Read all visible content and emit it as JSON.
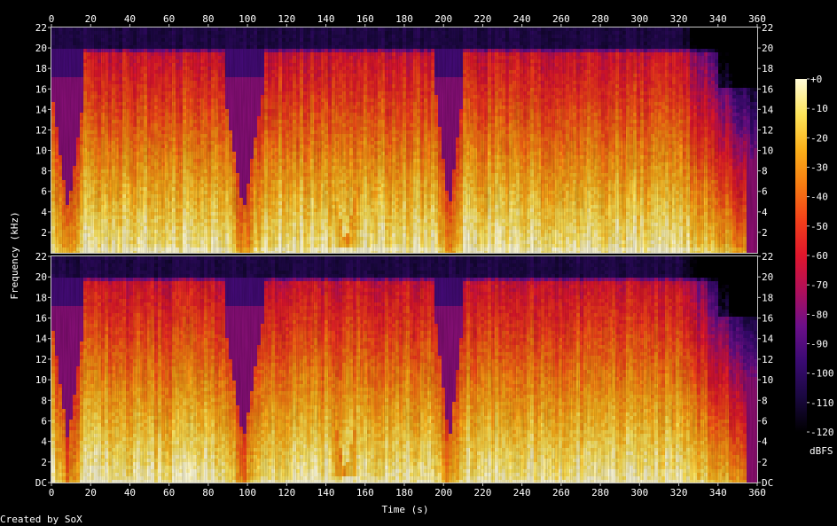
{
  "footer": {
    "credit": "Created by SoX"
  },
  "colors": {
    "background": "#000000",
    "palette": [
      "#000000",
      "#1a0840",
      "#3a0a72",
      "#6c0f8a",
      "#b00f5a",
      "#e0162c",
      "#f2401a",
      "#f77c12",
      "#fbb01a",
      "#fde45a",
      "#fffbd8"
    ]
  },
  "chart_data": {
    "type": "heatmap",
    "subtype": "spectrogram",
    "channels": 2,
    "xlabel": "Time (s)",
    "ylabel": "Frequency (kHz)",
    "xlim": [
      0,
      360
    ],
    "ylim_khz": [
      0,
      22
    ],
    "x_ticks": [
      "0",
      "20",
      "40",
      "60",
      "80",
      "100",
      "120",
      "140",
      "160",
      "180",
      "200",
      "220",
      "240",
      "260",
      "280",
      "300",
      "320",
      "340",
      "360"
    ],
    "channel_1_y_ticks": [
      "22",
      "20",
      "18",
      "16",
      "14",
      "12",
      "10",
      "8",
      "6",
      "4",
      "2"
    ],
    "channel_2_y_ticks": [
      "22",
      "20",
      "18",
      "16",
      "14",
      "12",
      "10",
      "8",
      "6",
      "4",
      "2",
      "DC"
    ],
    "colorbar": {
      "label": "dBFS",
      "range": [
        -120,
        0
      ],
      "ticks": [
        "+0",
        "-10",
        "-20",
        "-30",
        "-40",
        "-50",
        "-60",
        "-70",
        "-80",
        "-90",
        "-100",
        "-110",
        "-120"
      ]
    },
    "notes": {
      "lowpass_cutoff_khz": 20,
      "quiet_segments_s": [
        [
          0,
          17
        ],
        [
          88,
          108
        ],
        [
          196,
          210
        ]
      ],
      "fade_out_start_s": 320
    }
  }
}
